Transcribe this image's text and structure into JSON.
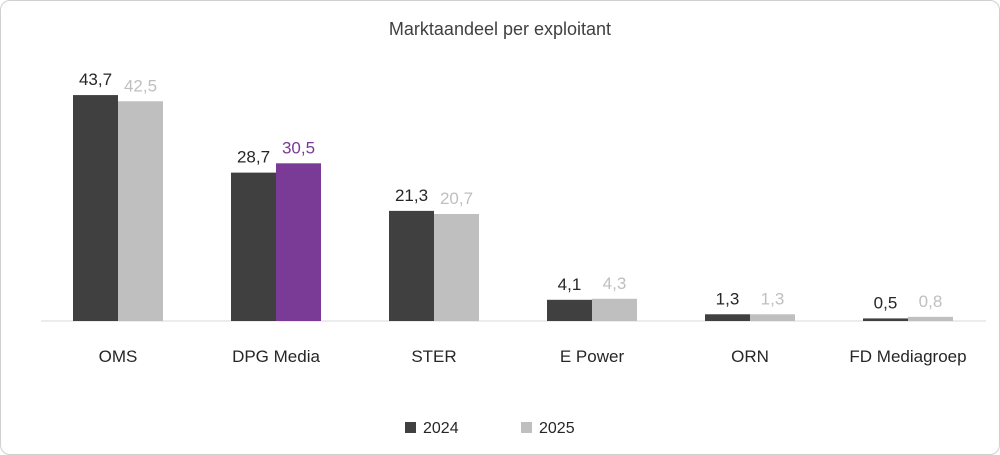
{
  "chart_data": {
    "type": "bar",
    "title": "Marktaandeel per exploitant",
    "categories": [
      "OMS",
      "DPG Media",
      "STER",
      "E Power",
      "ORN",
      "FD Mediagroep"
    ],
    "series": [
      {
        "name": "2024",
        "values": [
          43.7,
          28.7,
          21.3,
          4.1,
          1.3,
          0.5
        ],
        "labels": [
          "43,7",
          "28,7",
          "21,3",
          "4,1",
          "1,3",
          "0,5"
        ],
        "color": "#404040"
      },
      {
        "name": "2025",
        "values": [
          42.5,
          30.5,
          20.7,
          4.3,
          1.3,
          0.8
        ],
        "labels": [
          "42,5",
          "30,5",
          "20,7",
          "4,3",
          "1,3",
          "0,8"
        ],
        "color": "#bfbfbf"
      }
    ],
    "highlight": {
      "category": "DPG Media",
      "series": "2025",
      "color": "#7a3b96"
    },
    "ylim": [
      0,
      45
    ],
    "grid": false,
    "legend": "bottom-center",
    "xlabel": "",
    "ylabel": ""
  }
}
